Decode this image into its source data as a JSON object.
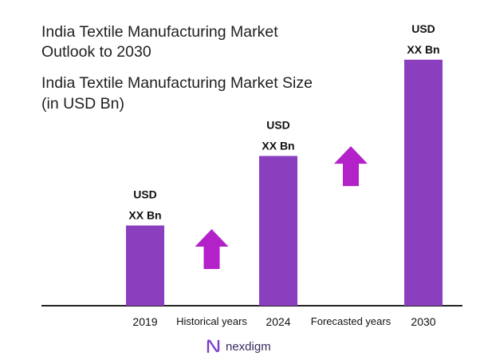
{
  "chart_data": {
    "type": "bar",
    "title": "India Textile Manufacturing Market\nOutlook to 2030",
    "subtitle": "India Textile Manufacturing Market Size\n(in USD Bn)",
    "categories": [
      "2019",
      "2024",
      "2030"
    ],
    "values": [
      30,
      56,
      92
    ],
    "value_labels": [
      [
        "USD",
        "XX Bn"
      ],
      [
        "USD",
        "XX Bn"
      ],
      [
        "USD",
        "XX Bn"
      ]
    ],
    "ylim": [
      0,
      100
    ],
    "grid": false,
    "periods": [
      {
        "label": "Historical years",
        "between": [
          0,
          1
        ]
      },
      {
        "label": "Forecasted years",
        "between": [
          1,
          2
        ]
      }
    ],
    "colors": {
      "bar": "#8a3fbf",
      "arrow": "#b322c9",
      "axis": "#222222"
    }
  },
  "brand": {
    "name": "nexdigm"
  }
}
